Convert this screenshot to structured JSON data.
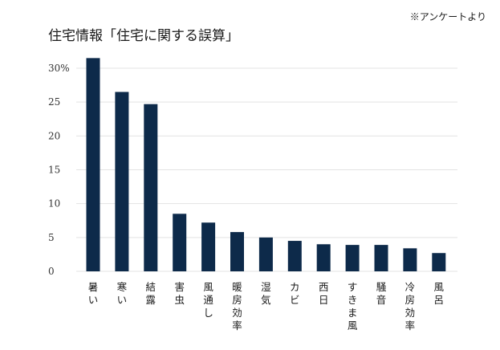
{
  "chart_data": {
    "type": "bar",
    "title": "住宅情報「住宅に関する誤算」",
    "note": "※アンケートより",
    "xlabel": "",
    "ylabel": "",
    "ylim": [
      0,
      30
    ],
    "y_ticks": [
      {
        "value": 0,
        "label": "0"
      },
      {
        "value": 5,
        "label": "5"
      },
      {
        "value": 10,
        "label": "10"
      },
      {
        "value": 15,
        "label": "15"
      },
      {
        "value": 20,
        "label": "20"
      },
      {
        "value": 25,
        "label": "25"
      },
      {
        "value": 30,
        "label": "30%"
      }
    ],
    "grid": true,
    "legend": "none",
    "bar_color": "#0d2a4a",
    "grid_color": "#e3e3e3",
    "categories": [
      "暑い",
      "寒い",
      "結露",
      "害虫",
      "風通し",
      "暖房効率",
      "湿気",
      "カビ",
      "西日",
      "すきま風",
      "騒音",
      "冷房効率",
      "風呂"
    ],
    "values": [
      31.5,
      26.5,
      24.7,
      8.5,
      7.2,
      5.8,
      5.0,
      4.5,
      4.0,
      3.9,
      3.9,
      3.4,
      2.7
    ]
  }
}
